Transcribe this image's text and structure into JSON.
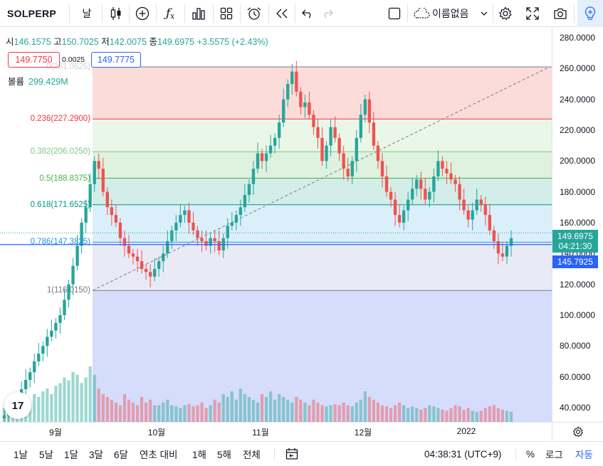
{
  "toolbar": {
    "symbol": "SOLPERP",
    "interval": "날",
    "layout_name": "이름없음",
    "icons": [
      "candles-icon",
      "plus-circle-icon",
      "fx-icon",
      "bar-chart-icon",
      "grid-icon",
      "alarm-clock-icon",
      "replay-icon",
      "undo-icon",
      "redo-icon",
      "layout-square-icon",
      "cloud-icon",
      "chevron-down-icon",
      "gear-icon",
      "fullscreen-icon",
      "camera-icon",
      "lightbulb-icon"
    ]
  },
  "legend": {
    "open_label": "시",
    "open": "146.1575",
    "high_label": "고",
    "high": "150.7025",
    "low_label": "저",
    "low": "142.0075",
    "close_label": "종",
    "close": "149.6975",
    "change": "+3.5575 (+2.43%)",
    "bid": "149.7750",
    "spread": "0.0025",
    "ask": "149.7775",
    "volume_label": "볼륨",
    "volume": "299.429M"
  },
  "fib": {
    "labels": [
      "1(116.0150)",
      "0.786(147.3825)",
      "0.618(171.6525)",
      "0.5(188.8375)",
      "0.382(206.0250)",
      "0.236(227.2900)",
      "0(261.0625)"
    ],
    "levels": [
      116.015,
      147.3825,
      171.6525,
      188.8375,
      206.025,
      227.29,
      261.0625
    ],
    "colors": [
      "#787b86",
      "#2196f3",
      "#009688",
      "#4caf50",
      "#81c784",
      "#f23645",
      "#787b86"
    ]
  },
  "price_axis": {
    "ticks": [
      "280.0000",
      "260.0000",
      "240.0000",
      "220.0000",
      "200.0000",
      "180.0000",
      "160.0000",
      "140.0000",
      "120.0000",
      "100.0000",
      "80.0000",
      "60.0000",
      "40.0000"
    ],
    "tick_values": [
      280,
      260,
      240,
      220,
      200,
      180,
      160,
      140,
      120,
      100,
      80,
      60,
      40
    ],
    "last_price": "149.6975",
    "countdown": "04:21:30",
    "line_price": "145.7925"
  },
  "time_axis": {
    "labels": [
      "9월",
      "10월",
      "11월",
      "12월",
      "2022"
    ]
  },
  "bottom": {
    "ranges": [
      "1날",
      "5날",
      "1달",
      "3달",
      "6달",
      "연초 대비",
      "1해",
      "5해",
      "전체"
    ],
    "clock": "04:38:31 (UTC+9)",
    "percent": "%",
    "log": "로그",
    "auto": "자동"
  },
  "logo_text": "17",
  "colors": {
    "up": "#26a69a",
    "down": "#ef5350",
    "accent": "#2962ff",
    "line": "#2962ff"
  },
  "chart_data": {
    "type": "candlestick",
    "x_labels": [
      "9월",
      "10월",
      "11월",
      "12월",
      "2022"
    ],
    "ylim": [
      30,
      285
    ],
    "closes": [
      35,
      38,
      42,
      47,
      52,
      58,
      63,
      70,
      75,
      80,
      86,
      90,
      95,
      100,
      110,
      120,
      132,
      145,
      160,
      170,
      185,
      200,
      195,
      180,
      170,
      165,
      160,
      150,
      145,
      140,
      138,
      135,
      130,
      128,
      125,
      130,
      135,
      140,
      148,
      155,
      160,
      165,
      168,
      160,
      155,
      150,
      148,
      145,
      150,
      148,
      142,
      150,
      158,
      160,
      165,
      170,
      178,
      185,
      195,
      205,
      200,
      205,
      210,
      215,
      225,
      240,
      250,
      258,
      245,
      235,
      238,
      230,
      222,
      215,
      200,
      210,
      222,
      215,
      205,
      195,
      190,
      200,
      215,
      230,
      240,
      225,
      210,
      200,
      190,
      180,
      175,
      165,
      160,
      168,
      175,
      182,
      188,
      182,
      175,
      180,
      190,
      200,
      195,
      192,
      188,
      185,
      175,
      168,
      162,
      168,
      175,
      172,
      165,
      155,
      148,
      140,
      138,
      145,
      150
    ],
    "volume_levels": [
      0.25,
      0.3,
      0.28,
      0.35,
      0.3,
      0.4,
      0.35,
      0.5,
      0.45,
      0.55,
      0.6,
      0.5,
      0.65,
      0.7,
      0.8,
      0.75,
      0.9,
      0.85,
      0.7,
      0.8,
      1.0,
      0.85,
      0.6,
      0.5,
      0.45,
      0.4,
      0.35,
      0.3,
      0.5,
      0.4,
      0.35,
      0.3,
      0.45,
      0.35,
      0.4,
      0.3,
      0.3,
      0.35,
      0.4,
      0.3,
      0.28,
      0.25,
      0.3,
      0.32,
      0.28,
      0.3,
      0.35,
      0.25,
      0.3,
      0.4,
      0.35,
      0.5,
      0.45,
      0.55,
      0.4,
      0.6,
      0.5,
      0.45,
      0.4,
      0.35,
      0.5,
      0.45,
      0.55,
      0.4,
      0.5,
      0.45,
      0.4,
      0.35,
      0.45,
      0.4,
      0.35,
      0.3,
      0.4,
      0.35,
      0.3,
      0.28,
      0.3,
      0.32,
      0.3,
      0.35,
      0.3,
      0.28,
      0.35,
      0.4,
      0.55,
      0.45,
      0.4,
      0.35,
      0.3,
      0.28,
      0.25,
      0.3,
      0.35,
      0.3,
      0.25,
      0.28,
      0.25,
      0.22,
      0.25,
      0.3,
      0.28,
      0.25,
      0.22,
      0.2,
      0.25,
      0.3,
      0.28,
      0.22,
      0.25,
      0.2,
      0.18,
      0.2,
      0.25,
      0.28,
      0.3,
      0.25,
      0.22,
      0.2,
      0.18
    ]
  }
}
